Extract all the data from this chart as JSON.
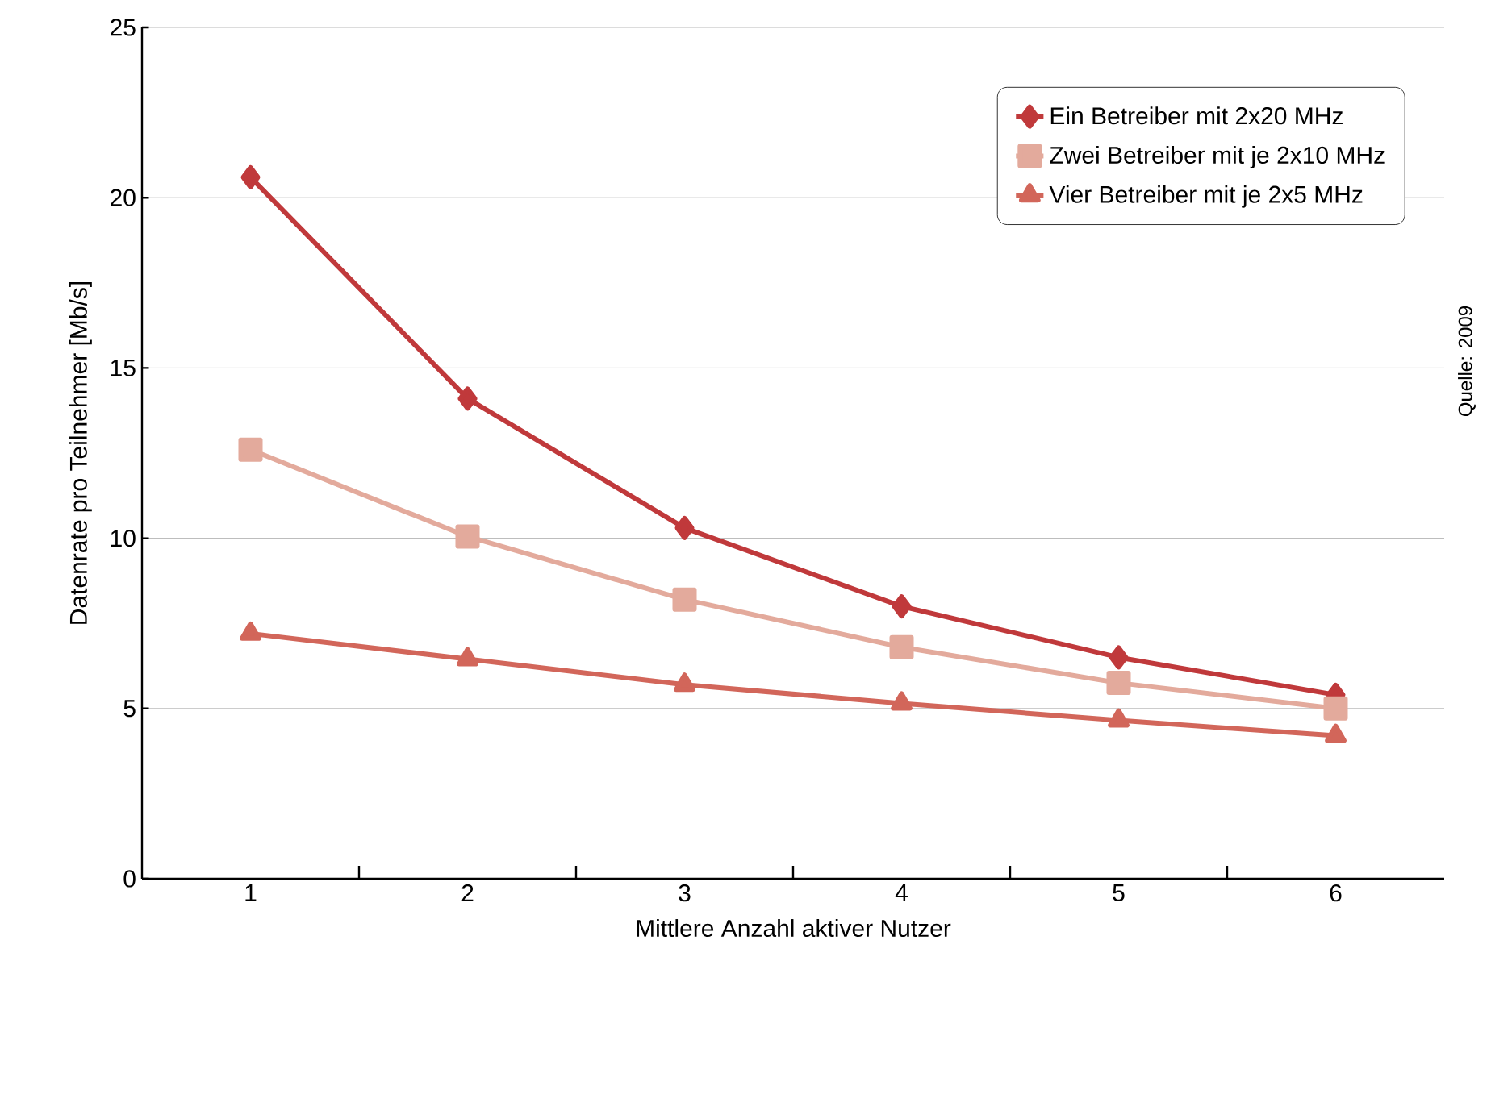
{
  "chart_data": {
    "type": "line",
    "xlabel": "Mittlere Anzahl aktiver Nutzer",
    "ylabel": "Datenrate pro Teilnehmer [Mb/s]",
    "categories": [
      "1",
      "2",
      "3",
      "4",
      "5",
      "6"
    ],
    "series": [
      {
        "name": "Ein Betreiber mit 2x20 MHz",
        "color": "#c0393b",
        "marker": "diamond",
        "values": [
          20.6,
          14.1,
          10.3,
          8.0,
          6.5,
          5.4
        ]
      },
      {
        "name": "Zwei Betreiber mit je 2x10 MHz",
        "color": "#e3aa9c",
        "marker": "square",
        "values": [
          12.6,
          10.05,
          8.2,
          6.8,
          5.75,
          5.0
        ]
      },
      {
        "name": "Vier Betreiber mit je 2x5 MHz",
        "color": "#d2665a",
        "marker": "triangle",
        "values": [
          7.2,
          6.45,
          5.7,
          5.15,
          4.65,
          4.2
        ]
      }
    ],
    "ylim": [
      0,
      25
    ],
    "yticks": [
      0,
      5,
      10,
      15,
      20,
      25
    ],
    "grid": "y",
    "legend": "top right",
    "line_style": "solid",
    "annotations": [
      "Quelle: 2009"
    ]
  }
}
